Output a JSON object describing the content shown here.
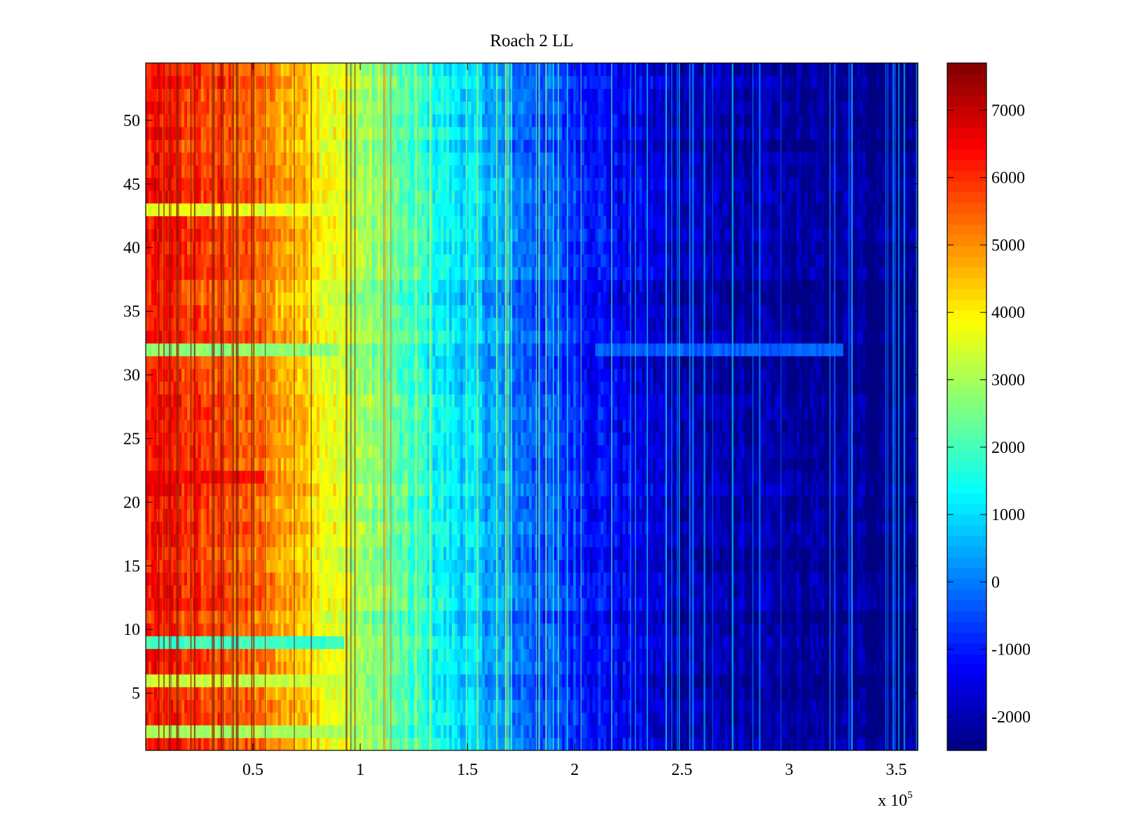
{
  "chart_data": {
    "type": "heatmap",
    "title": "Roach 2 LL",
    "xlabel": "",
    "ylabel": "",
    "x_exponent_label": "x 10",
    "x_exponent_power": "5",
    "xlim": [
      0,
      3.6
    ],
    "ylim": [
      0.5,
      54.5
    ],
    "x_ticks": [
      {
        "value": 0.5,
        "label": "0.5"
      },
      {
        "value": 1,
        "label": "1"
      },
      {
        "value": 1.5,
        "label": "1.5"
      },
      {
        "value": 2,
        "label": "2"
      },
      {
        "value": 2.5,
        "label": "2.5"
      },
      {
        "value": 3,
        "label": "3"
      },
      {
        "value": 3.5,
        "label": "3.5"
      }
    ],
    "y_ticks": [
      {
        "value": 5,
        "label": "5"
      },
      {
        "value": 10,
        "label": "10"
      },
      {
        "value": 15,
        "label": "15"
      },
      {
        "value": 20,
        "label": "20"
      },
      {
        "value": 25,
        "label": "25"
      },
      {
        "value": 30,
        "label": "30"
      },
      {
        "value": 35,
        "label": "35"
      },
      {
        "value": 40,
        "label": "40"
      },
      {
        "value": 45,
        "label": "45"
      },
      {
        "value": 50,
        "label": "50"
      }
    ],
    "rows": 54,
    "colorbar": {
      "colormap": "jet",
      "clim": [
        -2500,
        7700
      ],
      "ticks": [
        {
          "value": 7000,
          "label": "7000"
        },
        {
          "value": 6000,
          "label": "6000"
        },
        {
          "value": 5000,
          "label": "5000"
        },
        {
          "value": 4000,
          "label": "4000"
        },
        {
          "value": 3000,
          "label": "3000"
        },
        {
          "value": 2000,
          "label": "2000"
        },
        {
          "value": 1000,
          "label": "1000"
        },
        {
          "value": 0,
          "label": "0"
        },
        {
          "value": -1000,
          "label": "-1000"
        },
        {
          "value": -2000,
          "label": "-2000"
        }
      ]
    },
    "column_profile": [
      {
        "x": 0.0,
        "value": 6200
      },
      {
        "x": 0.25,
        "value": 5800
      },
      {
        "x": 0.5,
        "value": 5300
      },
      {
        "x": 0.75,
        "value": 4400
      },
      {
        "x": 0.95,
        "value": 3200
      },
      {
        "x": 1.2,
        "value": 2000
      },
      {
        "x": 1.5,
        "value": 900
      },
      {
        "x": 1.8,
        "value": -300
      },
      {
        "x": 2.2,
        "value": -1300
      },
      {
        "x": 2.5,
        "value": -2000
      },
      {
        "x": 3.0,
        "value": -2300
      },
      {
        "x": 3.6,
        "value": -2400
      }
    ],
    "row_anomalies": [
      {
        "row": 2,
        "x_range": [
          0,
          0.95
        ],
        "value": 3000
      },
      {
        "row": 6,
        "x_range": [
          0,
          0.95
        ],
        "value": 3300
      },
      {
        "row": 9,
        "x_range": [
          0,
          0.93
        ],
        "value": 1900
      },
      {
        "row": 22,
        "x_range": [
          0,
          0.55
        ],
        "value": 6400
      },
      {
        "row": 32,
        "x_range": [
          0,
          0.9
        ],
        "value": 2700
      },
      {
        "row": 32,
        "x_range": [
          2.1,
          3.25
        ],
        "value": -300
      },
      {
        "row": 43,
        "x_range": [
          0,
          0.95
        ],
        "value": 3600
      }
    ],
    "grid": false,
    "legend": "none"
  }
}
